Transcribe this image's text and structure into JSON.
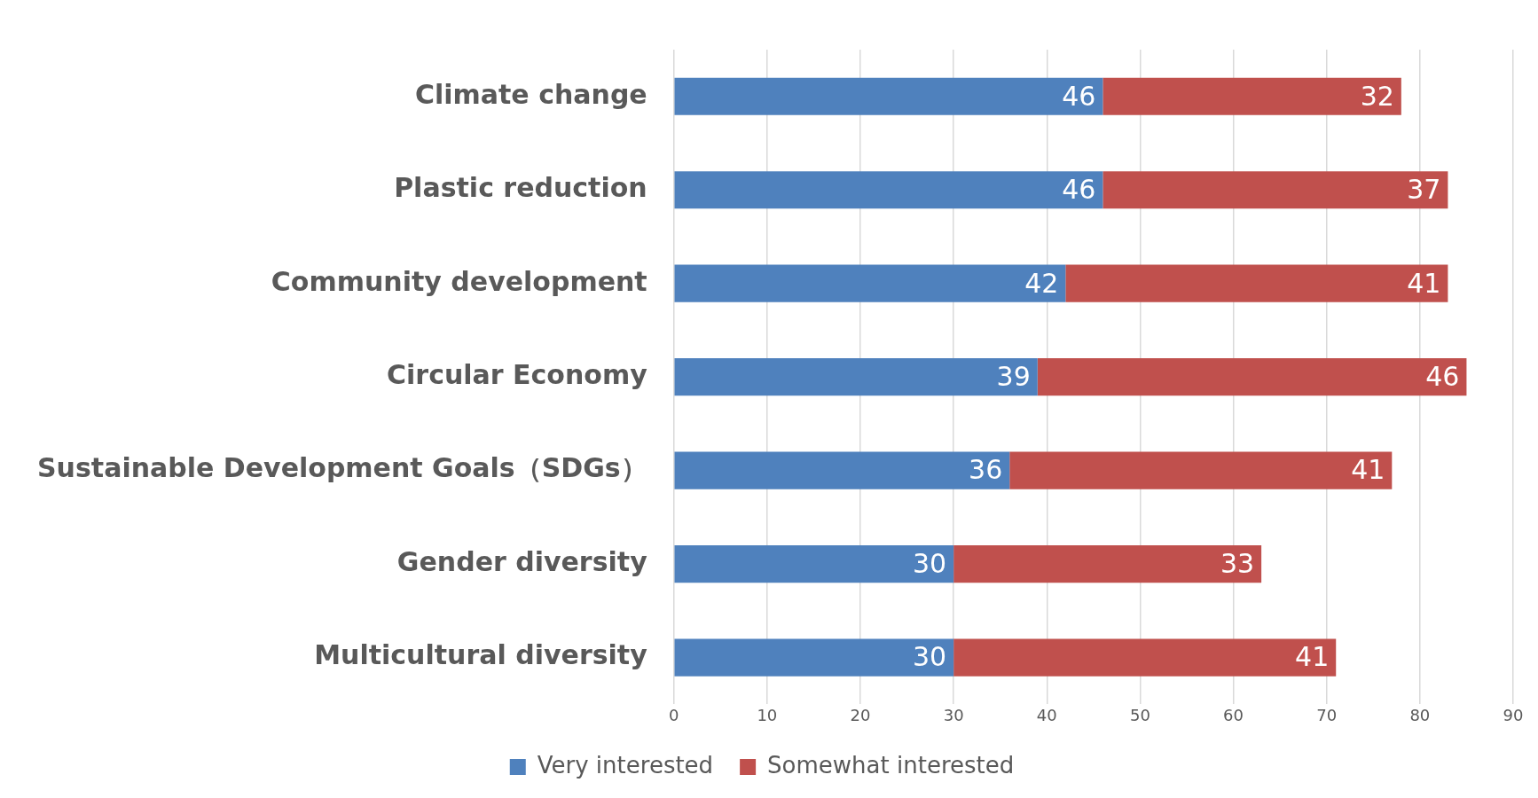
{
  "chart_data": {
    "type": "bar",
    "orientation": "horizontal",
    "stacked": true,
    "categories": [
      "Climate change",
      "Plastic reduction",
      "Community development",
      "Circular Economy",
      "Sustainable Development Goals（SDGs）",
      "Gender diversity",
      "Multicultural diversity"
    ],
    "series": [
      {
        "name": "Very interested",
        "color": "#4f81bd",
        "values": [
          46,
          46,
          42,
          39,
          36,
          30,
          30
        ]
      },
      {
        "name": "Somewhat interested",
        "color": "#c0504d",
        "values": [
          32,
          37,
          41,
          46,
          41,
          33,
          41
        ]
      }
    ],
    "xlim": [
      0,
      90
    ],
    "xticks": [
      0,
      10,
      20,
      30,
      40,
      50,
      60,
      70,
      80,
      90
    ],
    "grid": "x",
    "legend": "bottom",
    "data_labels": true
  }
}
